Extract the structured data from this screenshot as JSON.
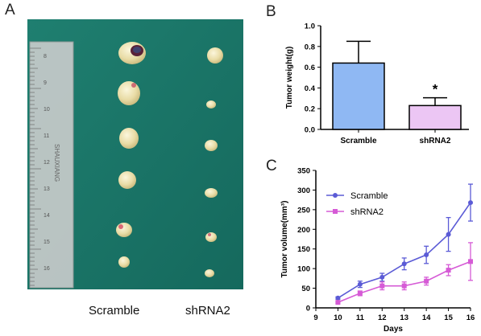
{
  "panels": {
    "a": "A",
    "b": "B",
    "c": "C"
  },
  "photo": {
    "captions": {
      "left": "Scramble",
      "right": "shRNA2"
    },
    "ruler_text": "SHAUXIANG",
    "ruler_numbers": [
      "8",
      "9",
      "10",
      "11",
      "12",
      "13",
      "14",
      "15",
      "16"
    ],
    "colors": {
      "background": "#1c7a6c",
      "ruler": "#c9c9c9"
    }
  },
  "chart_data": [
    {
      "type": "bar",
      "categories": [
        "Scramble",
        "shRNA2"
      ],
      "values": [
        0.64,
        0.23
      ],
      "errors": [
        0.21,
        0.075
      ],
      "ylabel": "Tumor weight(g)",
      "xlabel": "",
      "ylim": [
        0.0,
        1.0
      ],
      "yticks": [
        "0.0",
        "0.2",
        "0.4",
        "0.6",
        "0.8",
        "1.0"
      ],
      "annotations": [
        {
          "category": "shRNA2",
          "text": "*"
        }
      ],
      "colors": [
        "#8fb8f3",
        "#ecc6f4"
      ],
      "grid": false
    },
    {
      "type": "line",
      "x": [
        10,
        11,
        12,
        13,
        14,
        15,
        16
      ],
      "series": [
        {
          "name": "Scramble",
          "values": [
            25,
            60,
            78,
            112,
            135,
            187,
            268
          ],
          "errors": [
            3,
            8,
            10,
            15,
            22,
            43,
            47
          ],
          "color": "#5b5bd6",
          "marker": "circle"
        },
        {
          "name": "shRNA2",
          "values": [
            14,
            37,
            56,
            56,
            68,
            96,
            118
          ],
          "errors": [
            2,
            6,
            10,
            10,
            10,
            14,
            48
          ],
          "color": "#d65bd6",
          "marker": "square"
        }
      ],
      "xlabel": "Days",
      "ylabel": "Tumor volume(mm³)",
      "xlim": [
        9,
        16
      ],
      "ylim": [
        0,
        350
      ],
      "xticks": [
        "9",
        "10",
        "11",
        "12",
        "13",
        "14",
        "15",
        "16"
      ],
      "yticks": [
        "0",
        "50",
        "100",
        "150",
        "200",
        "250",
        "300",
        "350"
      ],
      "legend_position": "top-left",
      "grid": false
    }
  ]
}
